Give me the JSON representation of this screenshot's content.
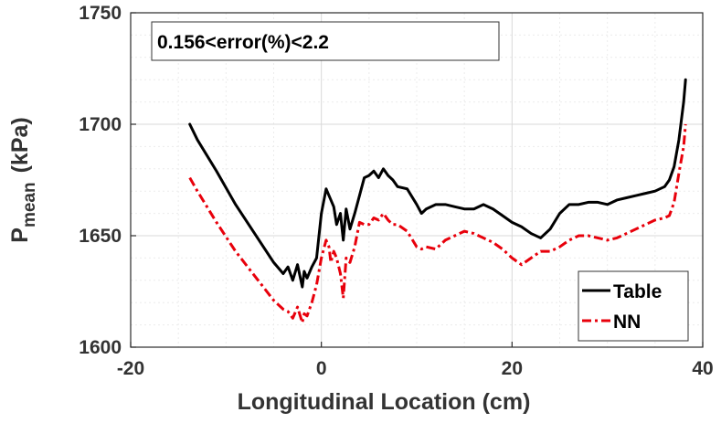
{
  "chart_data": {
    "type": "line",
    "title": "",
    "xlabel": "Longitudinal Location (cm)",
    "ylabel_main": "P",
    "ylabel_sub": "mean",
    "ylabel_unit": "(kPa)",
    "xlim": [
      -20,
      40
    ],
    "ylim": [
      1600,
      1750
    ],
    "xticks": [
      -20,
      0,
      20,
      40
    ],
    "yticks": [
      1600,
      1650,
      1700,
      1750
    ],
    "grid": true,
    "legend_position": "bottom-right",
    "annotation": "0.156<error(%)<2.2",
    "series": [
      {
        "name": "Table",
        "color": "#000000",
        "style": "solid",
        "x": [
          -13.8,
          -13,
          -11,
          -9,
          -7,
          -5,
          -4,
          -3.5,
          -3,
          -2.5,
          -2,
          -1.8,
          -1.5,
          -1,
          -0.5,
          0,
          0.5,
          0.8,
          1,
          1.3,
          1.6,
          2,
          2.3,
          2.6,
          3,
          3.5,
          4,
          4.5,
          5,
          5.5,
          6,
          6.5,
          7,
          7.5,
          8,
          9,
          10,
          10.5,
          11,
          12,
          13,
          14,
          15,
          16,
          17,
          18,
          19,
          20,
          21,
          22,
          23,
          24,
          25,
          26,
          27,
          28,
          29,
          30,
          31,
          32,
          33,
          34,
          35,
          36,
          36.5,
          37,
          37.5,
          38,
          38.2
        ],
        "values": [
          1700,
          1693,
          1679,
          1664,
          1651,
          1638,
          1633,
          1636,
          1630,
          1637,
          1627,
          1634,
          1631,
          1636,
          1640,
          1660,
          1671,
          1668,
          1666,
          1663,
          1655,
          1660,
          1648,
          1662,
          1653,
          1660,
          1668,
          1676,
          1677,
          1679,
          1676,
          1680,
          1677,
          1675,
          1672,
          1671,
          1664,
          1660,
          1662,
          1664,
          1664,
          1663,
          1662,
          1662,
          1664,
          1662,
          1659,
          1656,
          1654,
          1651,
          1649,
          1653,
          1660,
          1664,
          1664,
          1665,
          1665,
          1664,
          1666,
          1667,
          1668,
          1669,
          1670,
          1672,
          1675,
          1681,
          1693,
          1710,
          1720
        ]
      },
      {
        "name": "NN",
        "color": "#e8000b",
        "style": "dashdot",
        "x": [
          -13.8,
          -13,
          -11,
          -9,
          -7,
          -5,
          -4,
          -3.5,
          -3,
          -2.5,
          -2,
          -1.8,
          -1.5,
          -1,
          -0.5,
          0,
          0.5,
          0.8,
          1,
          1.3,
          1.6,
          2,
          2.3,
          2.6,
          3,
          3.5,
          4,
          4.5,
          5,
          5.5,
          6,
          6.5,
          7,
          7.5,
          8,
          9,
          10,
          10.5,
          11,
          12,
          13,
          14,
          15,
          16,
          17,
          18,
          19,
          20,
          21,
          22,
          23,
          24,
          25,
          26,
          27,
          28,
          29,
          30,
          31,
          32,
          33,
          34,
          35,
          36,
          36.5,
          37,
          37.5,
          38,
          38.2
        ],
        "values": [
          1676,
          1670,
          1656,
          1643,
          1632,
          1621,
          1617,
          1616,
          1613,
          1618,
          1611,
          1615,
          1614,
          1620,
          1628,
          1640,
          1648,
          1645,
          1638,
          1643,
          1640,
          1633,
          1622,
          1640,
          1638,
          1645,
          1656,
          1655,
          1655,
          1658,
          1657,
          1660,
          1657,
          1655,
          1655,
          1652,
          1645,
          1644,
          1645,
          1644,
          1648,
          1650,
          1652,
          1651,
          1649,
          1647,
          1644,
          1640,
          1637,
          1640,
          1643,
          1643,
          1645,
          1648,
          1650,
          1650,
          1649,
          1648,
          1649,
          1651,
          1653,
          1655,
          1657,
          1658,
          1659,
          1665,
          1678,
          1690,
          1700
        ]
      }
    ]
  }
}
